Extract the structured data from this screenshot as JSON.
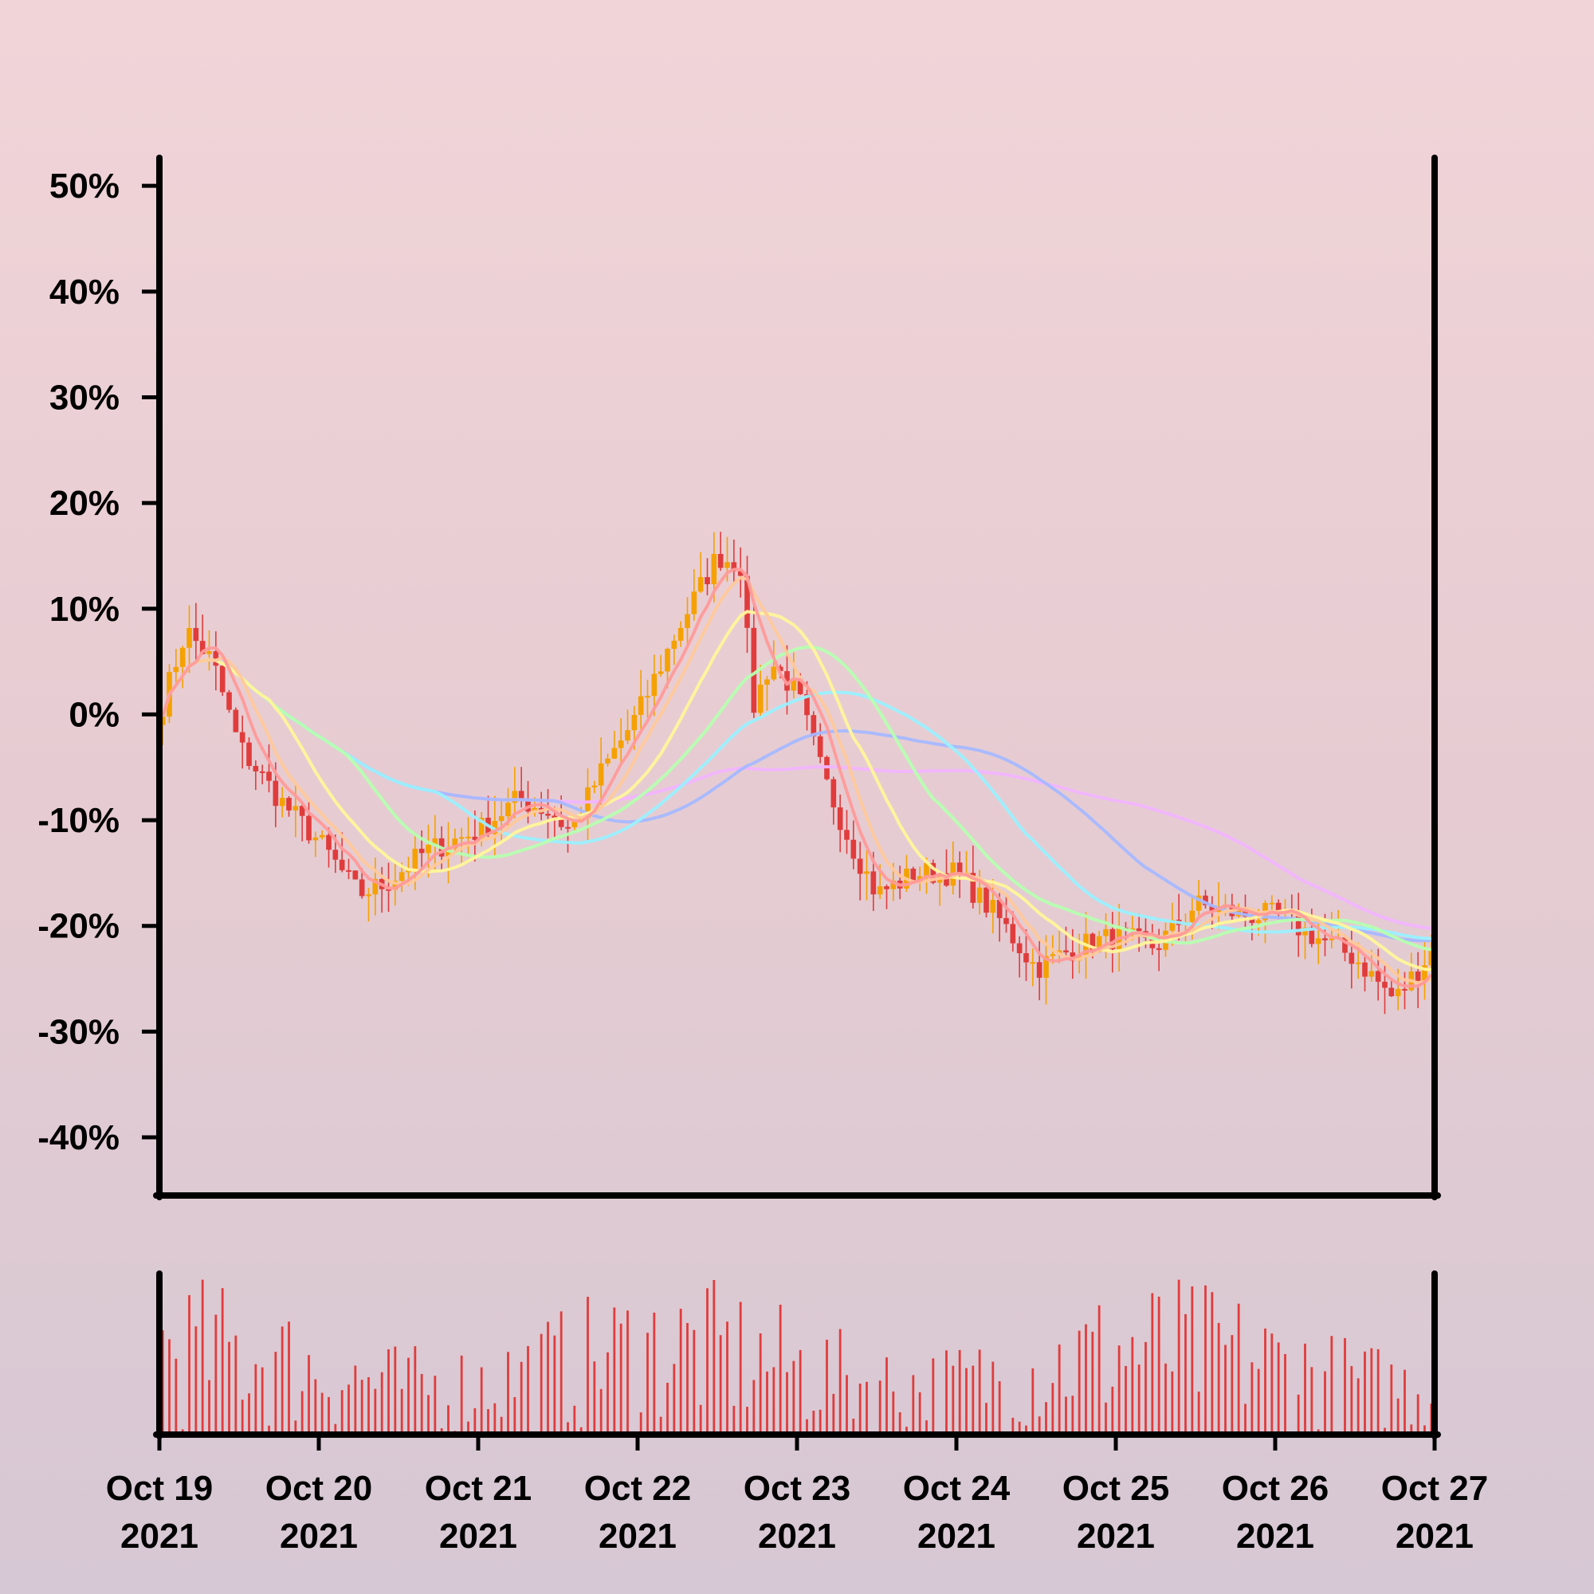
{
  "chart_data": {
    "type": "candlestick",
    "y_axis": {
      "ticks": [
        50,
        40,
        30,
        20,
        10,
        0,
        -10,
        -20,
        -30,
        -40
      ],
      "tick_labels": [
        "50%",
        "40%",
        "30%",
        "20%",
        "10%",
        "0%",
        "-10%",
        "-20%",
        "-30%",
        "-40%"
      ],
      "ylim": [
        -45.5,
        52.5
      ]
    },
    "x_axis": {
      "ticks": [
        "2021-10-19",
        "2021-10-20",
        "2021-10-21",
        "2021-10-22",
        "2021-10-23",
        "2021-10-24",
        "2021-10-25",
        "2021-10-26",
        "2021-10-27"
      ],
      "tick_labels": [
        [
          "Oct 19",
          "2021"
        ],
        [
          "Oct 20",
          "2021"
        ],
        [
          "Oct 21",
          "2021"
        ],
        [
          "Oct 22",
          "2021"
        ],
        [
          "Oct 23",
          "2021"
        ],
        [
          "Oct 24",
          "2021"
        ],
        [
          "Oct 25",
          "2021"
        ],
        [
          "Oct 26",
          "2021"
        ],
        [
          "Oct 27",
          "2021"
        ]
      ],
      "xlim": [
        "2021-10-19",
        "2021-10-27"
      ]
    },
    "price_series": [
      [
        "2021-10-19T00:00",
        0
      ],
      [
        "2021-10-19T04:00",
        8
      ],
      [
        "2021-10-19T08:00",
        5
      ],
      [
        "2021-10-19T12:00",
        -3
      ],
      [
        "2021-10-19T18:00",
        -8
      ],
      [
        "2021-10-20T00:00",
        -12
      ],
      [
        "2021-10-20T06:00",
        -17
      ],
      [
        "2021-10-20T10:00",
        -16
      ],
      [
        "2021-10-20T16:00",
        -13
      ],
      [
        "2021-10-21T00:00",
        -11
      ],
      [
        "2021-10-21T06:00",
        -8
      ],
      [
        "2021-10-21T10:00",
        -9
      ],
      [
        "2021-10-21T14:00",
        -11
      ],
      [
        "2021-10-21T18:00",
        -6
      ],
      [
        "2021-10-22T00:00",
        0
      ],
      [
        "2021-10-22T06:00",
        8
      ],
      [
        "2021-10-22T12:00",
        15
      ],
      [
        "2021-10-22T16:00",
        14
      ],
      [
        "2021-10-22T17:00",
        0
      ],
      [
        "2021-10-22T20:00",
        5
      ],
      [
        "2021-10-23T00:00",
        2
      ],
      [
        "2021-10-23T04:00",
        -6
      ],
      [
        "2021-10-23T08:00",
        -12
      ],
      [
        "2021-10-23T12:00",
        -17
      ],
      [
        "2021-10-23T18:00",
        -15
      ],
      [
        "2021-10-24T00:00",
        -15
      ],
      [
        "2021-10-24T06:00",
        -19
      ],
      [
        "2021-10-24T12:00",
        -24
      ],
      [
        "2021-10-24T18:00",
        -22
      ],
      [
        "2021-10-25T00:00",
        -21
      ],
      [
        "2021-10-25T06:00",
        -22
      ],
      [
        "2021-10-25T12:00",
        -18
      ],
      [
        "2021-10-25T20:00",
        -19
      ],
      [
        "2021-10-26T00:00",
        -19
      ],
      [
        "2021-10-26T06:00",
        -21
      ],
      [
        "2021-10-26T12:00",
        -23
      ],
      [
        "2021-10-26T18:00",
        -27
      ],
      [
        "2021-10-27T00:00",
        -22
      ]
    ],
    "moving_averages": [
      {
        "color": "#ff9a9a",
        "window_hours": 6
      },
      {
        "color": "#ffc89a",
        "window_hours": 9
      },
      {
        "color": "#fff59a",
        "window_hours": 16
      },
      {
        "color": "#b6ffb0",
        "window_hours": 28
      },
      {
        "color": "#9af0ff",
        "window_hours": 42
      },
      {
        "color": "#a6b8ff",
        "window_hours": 60
      },
      {
        "color": "#f2b4ff",
        "window_hours": 84
      }
    ],
    "volume": {
      "color": "#e03c3c",
      "note": "hourly volume bars, relative scale, no axis labels"
    },
    "candle_colors": {
      "up": "#f5a100",
      "down": "#e03c3c"
    },
    "grid": false,
    "legend": "none"
  }
}
